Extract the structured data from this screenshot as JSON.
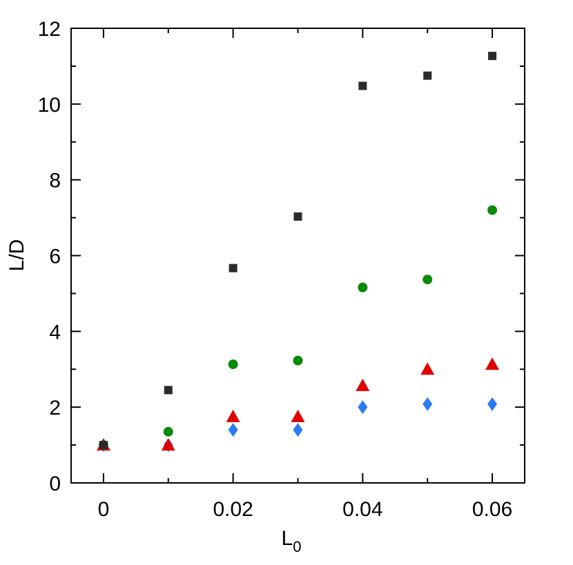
{
  "chart_data": {
    "type": "scatter",
    "xlabel": "L",
    "xlabel_subscript": "0",
    "ylabel": "L/D",
    "xlim": [
      -0.005,
      0.065
    ],
    "ylim": [
      0,
      12
    ],
    "xticks": [
      0,
      0.02,
      0.04,
      0.06
    ],
    "xtick_labels": [
      "0",
      "0.02",
      "0.04",
      "0.06"
    ],
    "xminor": [
      0.01,
      0.03,
      0.05
    ],
    "yticks": [
      0,
      2,
      4,
      6,
      8,
      10,
      12
    ],
    "ytick_labels": [
      "0",
      "2",
      "4",
      "6",
      "8",
      "10",
      "12"
    ],
    "yminor": [
      1,
      3,
      5,
      7,
      9,
      11
    ],
    "grid": false,
    "legend": "none",
    "x": [
      0,
      0.01,
      0.02,
      0.03,
      0.04,
      0.05,
      0.06
    ],
    "series": [
      {
        "marker": "square",
        "color": "#2b2b2b",
        "values": [
          1.0,
          2.45,
          5.67,
          7.03,
          10.48,
          10.75,
          11.27
        ]
      },
      {
        "marker": "circle",
        "color": "#0a8a0a",
        "values": [
          1.0,
          1.35,
          3.13,
          3.23,
          5.16,
          5.37,
          7.2
        ]
      },
      {
        "marker": "triangle",
        "color": "#e00000",
        "values": [
          1.0,
          1.0,
          1.75,
          1.75,
          2.57,
          3.0,
          3.13
        ]
      },
      {
        "marker": "diamond",
        "color": "#2a7bf0",
        "values": [
          1.0,
          1.0,
          1.4,
          1.4,
          2.0,
          2.08,
          2.08
        ]
      }
    ]
  }
}
